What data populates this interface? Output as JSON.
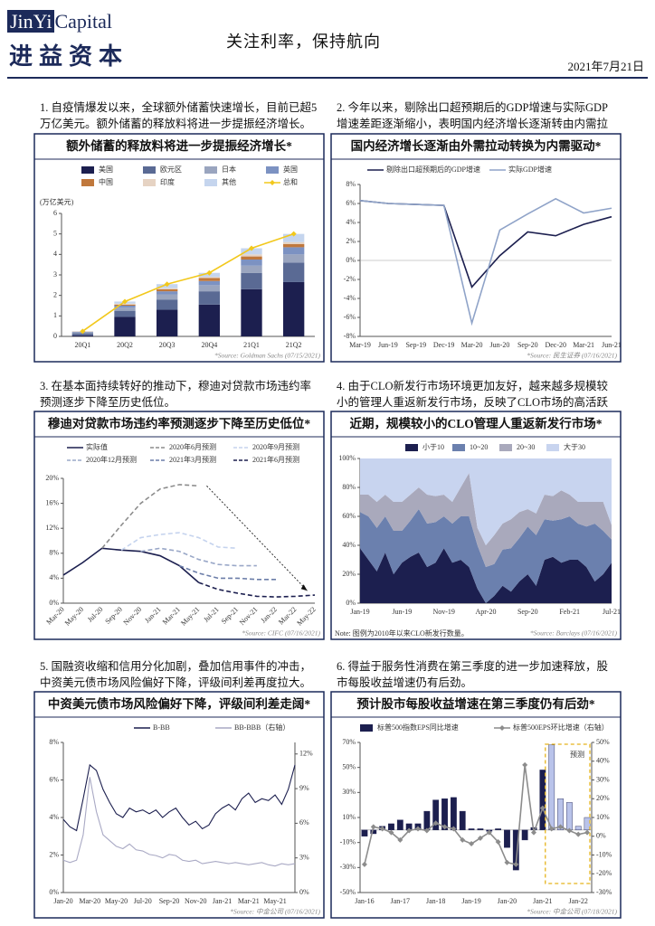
{
  "header": {
    "logo_en_1": "JinYi",
    "logo_en_2": "Capital",
    "logo_cn": "进益资本",
    "title": "关注利率，保持航向",
    "date": "2021年7月21日"
  },
  "captions": [
    "1. 自疫情爆发以来，全球额外储蓄快速增长，目前已超5万亿美元。额外储蓄的释放料将进一步提振经济增长。",
    "2. 今年以来，剔除出口超预期后的GDP增速与实际GDP增速差距逐渐缩小，表明国内经济增长逐渐转由内需拉动。",
    "3. 在基本面持续转好的推动下，穆迪对贷款市场违约率预测逐步下降至历史低位。",
    "4. 由于CLO新发行市场环境更加友好，越来越多规模较小的管理人重返新发行市场，反映了CLO市场的高活跃度。",
    "5. 国融资收缩和信用分化加剧，叠加信用事件的冲击，中资美元债市场风险偏好下降，评级间利差再度拉大。",
    "6. 得益于服务性消费在第三季度的进一步加速释放，股市每股收益增速仍有后劲。"
  ],
  "chart_data": [
    {
      "type": "bar",
      "stacked": true,
      "title": "额外储蓄的释放料将进一步提振经济增长*",
      "y_label": "(万亿美元)",
      "categories": [
        "20Q1",
        "20Q2",
        "20Q3",
        "20Q4",
        "21Q1",
        "21Q2"
      ],
      "series": [
        {
          "name": "美国",
          "color": "#1c1f4f",
          "values": [
            0.05,
            0.95,
            1.3,
            1.55,
            2.3,
            2.65
          ]
        },
        {
          "name": "欧元区",
          "color": "#5a6a94",
          "values": [
            0.1,
            0.3,
            0.5,
            0.65,
            0.8,
            0.95
          ]
        },
        {
          "name": "日本",
          "color": "#9aa5bf",
          "values": [
            0.05,
            0.15,
            0.25,
            0.3,
            0.35,
            0.4
          ]
        },
        {
          "name": "英国",
          "color": "#7c92c2",
          "values": [
            0.02,
            0.1,
            0.15,
            0.2,
            0.3,
            0.35
          ]
        },
        {
          "name": "中国",
          "color": "#c0783c",
          "values": [
            0.01,
            0.05,
            0.1,
            0.15,
            0.15,
            0.15
          ]
        },
        {
          "name": "印度",
          "color": "#e6d3c3",
          "values": [
            0.01,
            0.05,
            0.05,
            0.05,
            0.1,
            0.1
          ]
        },
        {
          "name": "其他",
          "color": "#c5d5ee",
          "values": [
            0.01,
            0.1,
            0.2,
            0.2,
            0.3,
            0.4
          ]
        },
        {
          "name": "总和",
          "type": "line",
          "marker": "diamond",
          "color": "#f2c81c",
          "values": [
            0.25,
            1.7,
            2.55,
            3.1,
            4.3,
            5.0
          ]
        }
      ],
      "ylim": [
        0,
        6
      ],
      "yticks": [
        0,
        1,
        2,
        3,
        4,
        5,
        6
      ],
      "source": "*Source: Goldman Sachs (07/15/2021)"
    },
    {
      "type": "line",
      "title": "国内经济增长逐渐由外需拉动转换为内需驱动*",
      "categories": [
        "Mar-19",
        "Jun-19",
        "Sep-19",
        "Dec-19",
        "Mar-20",
        "Jun-20",
        "Sep-20",
        "Dec-20",
        "Mar-21",
        "Jun-21"
      ],
      "series": [
        {
          "name": "剔除出口超预期后的GDP增速",
          "color": "#1c1f4f",
          "values": [
            6.3,
            6.0,
            5.9,
            5.8,
            -2.8,
            0.5,
            3.0,
            2.6,
            3.8,
            4.6
          ]
        },
        {
          "name": "实际GDP增速",
          "color": "#8fa3c8",
          "values": [
            6.3,
            6.0,
            5.9,
            5.8,
            -6.6,
            3.2,
            4.9,
            6.5,
            5.0,
            5.5
          ]
        }
      ],
      "ylim": [
        -8,
        8
      ],
      "yticks": [
        {
          "value": -8,
          "label": "-8%"
        },
        {
          "value": -6,
          "label": "-6%"
        },
        {
          "value": -4,
          "label": "-4%"
        },
        {
          "value": -2,
          "label": "-2%"
        },
        {
          "value": 0,
          "label": "0%"
        },
        {
          "value": 2,
          "label": "2%"
        },
        {
          "value": 4,
          "label": "4%"
        },
        {
          "value": 6,
          "label": "6%"
        },
        {
          "value": 8,
          "label": "8%"
        }
      ],
      "source": "*Source: 民生证券 (07/16/2021)"
    },
    {
      "type": "line",
      "title": "穆迪对贷款市场违约率预测逐步下降至历史低位*",
      "categories": [
        "Mar-20",
        "May-20",
        "Jul-20",
        "Sep-20",
        "Nov-20",
        "Jan-21",
        "Mar-21",
        "May-21",
        "Jul-21",
        "Sep-21",
        "Nov-21",
        "Jan-22",
        "Mar-22",
        "May-22"
      ],
      "series": [
        {
          "name": "实际值",
          "color": "#1c1f4f",
          "values": [
            4.5,
            6.5,
            8.8,
            8.5,
            8.3,
            7.6,
            6.0,
            3.3,
            null,
            null,
            null,
            null,
            null,
            null
          ]
        },
        {
          "name": "2020年6月预测",
          "style": "dashed",
          "color": "#8c8c8c",
          "values": [
            null,
            null,
            8.8,
            12.5,
            16,
            18.3,
            19,
            18.8,
            null,
            null,
            null,
            null,
            null,
            null
          ]
        },
        {
          "name": "2020年9月预测",
          "style": "dashed",
          "color": "#c5d3ee",
          "values": [
            null,
            null,
            null,
            8.5,
            10.5,
            11,
            11.3,
            10.5,
            9,
            8.8,
            null,
            null,
            null,
            null
          ]
        },
        {
          "name": "2020年12月预测",
          "style": "dashed",
          "color": "#9aa8c8",
          "values": [
            null,
            null,
            null,
            null,
            8.3,
            8.8,
            8.3,
            7,
            6.2,
            6,
            6,
            null,
            null,
            null
          ]
        },
        {
          "name": "2021年3月预测",
          "style": "dashed",
          "color": "#6b7da8",
          "values": [
            null,
            null,
            null,
            null,
            null,
            null,
            6,
            4.8,
            4,
            4,
            3.8,
            3.8,
            null,
            null
          ]
        },
        {
          "name": "2021年6月预测",
          "style": "dashed",
          "color": "#1c1f4f",
          "values": [
            null,
            null,
            null,
            null,
            null,
            null,
            null,
            3.3,
            2.2,
            1.6,
            1.1,
            1.0,
            1.1,
            1.3
          ]
        }
      ],
      "ylim": [
        0,
        20
      ],
      "yticks": [
        {
          "value": 0,
          "label": "0%"
        },
        {
          "value": 4,
          "label": "4%"
        },
        {
          "value": 8,
          "label": "8%"
        },
        {
          "value": 12,
          "label": "12%"
        },
        {
          "value": 16,
          "label": "16%"
        },
        {
          "value": 20,
          "label": "20%"
        }
      ],
      "source": "*Source: CIFC (07/16/2021)"
    },
    {
      "type": "area",
      "stacked": true,
      "title": "近期，规模较小的CLO管理人重返新发行市场*",
      "categories": [
        "Jan-19",
        null,
        null,
        null,
        null,
        "Jun-19",
        null,
        null,
        null,
        null,
        "Nov-19",
        null,
        null,
        null,
        null,
        "Apr-20",
        null,
        null,
        null,
        null,
        "Sep-20",
        null,
        null,
        null,
        null,
        "Feb-21",
        null,
        null,
        null,
        null,
        "Jul-21"
      ],
      "series": [
        {
          "name": "小于10",
          "color": "#1c1f4f",
          "values": [
            38,
            30,
            22,
            35,
            20,
            28,
            32,
            35,
            25,
            28,
            38,
            28,
            30,
            25,
            10,
            0,
            5,
            12,
            8,
            15,
            20,
            12,
            30,
            32,
            28,
            30,
            30,
            25,
            15,
            20,
            28
          ]
        },
        {
          "name": "10~20",
          "color": "#6b80ae",
          "values": [
            25,
            30,
            30,
            25,
            30,
            22,
            25,
            30,
            30,
            28,
            22,
            27,
            30,
            35,
            30,
            25,
            22,
            25,
            30,
            30,
            33,
            35,
            28,
            25,
            30,
            30,
            25,
            28,
            40,
            30,
            16
          ]
        },
        {
          "name": "20~30",
          "color": "#a9a9bc",
          "values": [
            12,
            15,
            18,
            15,
            20,
            20,
            18,
            15,
            20,
            18,
            15,
            15,
            20,
            30,
            12,
            15,
            20,
            18,
            20,
            18,
            12,
            15,
            17,
            17,
            20,
            15,
            15,
            17,
            15,
            20,
            10
          ]
        },
        {
          "name": "大于30",
          "color": "#c8d4ef",
          "values": [
            25,
            25,
            30,
            25,
            30,
            30,
            25,
            20,
            25,
            26,
            25,
            30,
            20,
            10,
            48,
            60,
            53,
            45,
            42,
            37,
            35,
            38,
            25,
            26,
            22,
            25,
            30,
            30,
            30,
            30,
            46
          ]
        }
      ],
      "ylim": [
        0,
        100
      ],
      "yticks": [
        {
          "value": 0,
          "label": "0%"
        },
        {
          "value": 20,
          "label": "20%"
        },
        {
          "value": 40,
          "label": "40%"
        },
        {
          "value": 60,
          "label": "60%"
        },
        {
          "value": 80,
          "label": "80%"
        },
        {
          "value": 100,
          "label": "100%"
        }
      ],
      "note": "Note: 图例为2010年以来CLO新发行数量。",
      "source": "*Source: Barclays (07/16/2021)"
    },
    {
      "type": "line",
      "title": "中资美元债市场风险偏好下降，评级间利差走阔*",
      "categories": [
        "Jan-20",
        null,
        null,
        null,
        "Mar-20",
        null,
        null,
        null,
        "May-20",
        null,
        null,
        null,
        "Jul-20",
        null,
        null,
        null,
        "Sep-20",
        null,
        null,
        null,
        "Nov-20",
        null,
        null,
        null,
        "Jan-21",
        null,
        null,
        null,
        "Mar-21",
        null,
        null,
        null,
        "May-21",
        null,
        null,
        null
      ],
      "series": [
        {
          "name": "B-BB",
          "color": "#1c1f4f",
          "values": [
            3.9,
            3.5,
            3.3,
            5,
            6.8,
            6.5,
            5.5,
            4.8,
            4.2,
            4.0,
            4.5,
            4.3,
            4.4,
            4.2,
            4.4,
            4.0,
            4.3,
            4.5,
            4.0,
            3.6,
            3.8,
            3.4,
            3.6,
            4.2,
            4.5,
            4.7,
            4.4,
            5.0,
            5.3,
            4.8,
            5.0,
            4.9,
            5.2,
            4.7,
            5.5,
            6.8
          ]
        },
        {
          "name": "BB-BBB（右轴）",
          "axis": "y2",
          "color": "#a9a9c4",
          "values": [
            2.8,
            2.6,
            2.8,
            5,
            10,
            7,
            5,
            4.5,
            4.0,
            3.8,
            4.2,
            3.7,
            3.6,
            3.3,
            3.2,
            3.0,
            3.3,
            3.2,
            2.8,
            2.7,
            2.8,
            2.5,
            2.6,
            2.7,
            2.6,
            2.5,
            2.6,
            2.5,
            2.4,
            2.5,
            2.6,
            2.4,
            2.3,
            2.5,
            2.4,
            2.5
          ]
        }
      ],
      "ylim": [
        0,
        8
      ],
      "yticks": [
        {
          "value": 0,
          "label": "0%"
        },
        {
          "value": 2,
          "label": "2%"
        },
        {
          "value": 4,
          "label": "4%"
        },
        {
          "value": 6,
          "label": "6%"
        },
        {
          "value": 8,
          "label": "8%"
        }
      ],
      "y2lim": [
        0,
        13
      ],
      "y2ticks": [
        {
          "value": 0,
          "label": "0%"
        },
        {
          "value": 3,
          "label": "3%"
        },
        {
          "value": 6,
          "label": "6%"
        },
        {
          "value": 9,
          "label": "9%"
        },
        {
          "value": 12,
          "label": "12%"
        }
      ],
      "source": "*Source: 中金公司 (07/16/2021)"
    },
    {
      "type": "bar",
      "title": "预计股市每股收益增速在第三季度仍有后劲*",
      "annotation": "预测",
      "categories": [
        "Jan-16",
        null,
        null,
        null,
        "Jan-17",
        null,
        null,
        null,
        "Jan-18",
        null,
        null,
        null,
        "Jan-19",
        null,
        null,
        null,
        "Jan-20",
        null,
        null,
        null,
        "Jan-21",
        null,
        null,
        null,
        "Jan-22",
        null
      ],
      "series": [
        {
          "name": "标普500指数EPS同比增速",
          "color": "#1c1f4f",
          "colors": [
            "#1c1f4f",
            "#1c1f4f",
            "#1c1f4f",
            "#1c1f4f",
            "#1c1f4f",
            "#1c1f4f",
            "#1c1f4f",
            "#1c1f4f",
            "#1c1f4f",
            "#1c1f4f",
            "#1c1f4f",
            "#1c1f4f",
            "#1c1f4f",
            "#1c1f4f",
            "#1c1f4f",
            "#1c1f4f",
            "#1c1f4f",
            "#1c1f4f",
            "#1c1f4f",
            "#1c1f4f",
            "#1c1f4f",
            "#b9c3ea",
            "#b9c3ea",
            "#b9c3ea",
            "#b9c3ea",
            "#b9c3ea"
          ],
          "values": [
            -5,
            -3,
            3,
            5,
            8,
            5,
            5,
            15,
            24,
            25,
            26,
            15,
            1,
            1,
            -1,
            1,
            -14,
            -32,
            -8,
            2,
            48,
            68,
            25,
            22,
            3,
            10
          ]
        },
        {
          "name": "标普500EPS环比增速（右轴）",
          "type": "line",
          "axis": "y2",
          "marker": "diamond",
          "color": "#8c8c8c",
          "values": [
            -15,
            5,
            4,
            2,
            -2,
            3,
            4,
            3,
            7,
            5,
            4,
            -2,
            -4,
            -1,
            2,
            -3,
            -14,
            -15,
            38,
            2,
            15,
            4,
            5,
            3,
            1,
            2
          ]
        }
      ],
      "ylim": [
        -50,
        70
      ],
      "yticks": [
        {
          "value": -50,
          "label": "-50%"
        },
        {
          "value": -30,
          "label": "-30%"
        },
        {
          "value": -10,
          "label": "-10%"
        },
        {
          "value": 10,
          "label": "10%"
        },
        {
          "value": 30,
          "label": "30%"
        },
        {
          "value": 50,
          "label": "50%"
        },
        {
          "value": 70,
          "label": "70%"
        }
      ],
      "y2lim": [
        -30,
        50
      ],
      "y2ticks": [
        {
          "value": -30,
          "label": "-30%"
        },
        {
          "value": -20,
          "label": "-20%"
        },
        {
          "value": -10,
          "label": "-10%"
        },
        {
          "value": 0,
          "label": "0%"
        },
        {
          "value": 10,
          "label": "10%"
        },
        {
          "value": 20,
          "label": "20%"
        },
        {
          "value": 30,
          "label": "30%"
        },
        {
          "value": 40,
          "label": "40%"
        },
        {
          "value": 50,
          "label": "50%"
        }
      ],
      "source": "*Source: 中金公司 (07/18/2021)"
    }
  ]
}
